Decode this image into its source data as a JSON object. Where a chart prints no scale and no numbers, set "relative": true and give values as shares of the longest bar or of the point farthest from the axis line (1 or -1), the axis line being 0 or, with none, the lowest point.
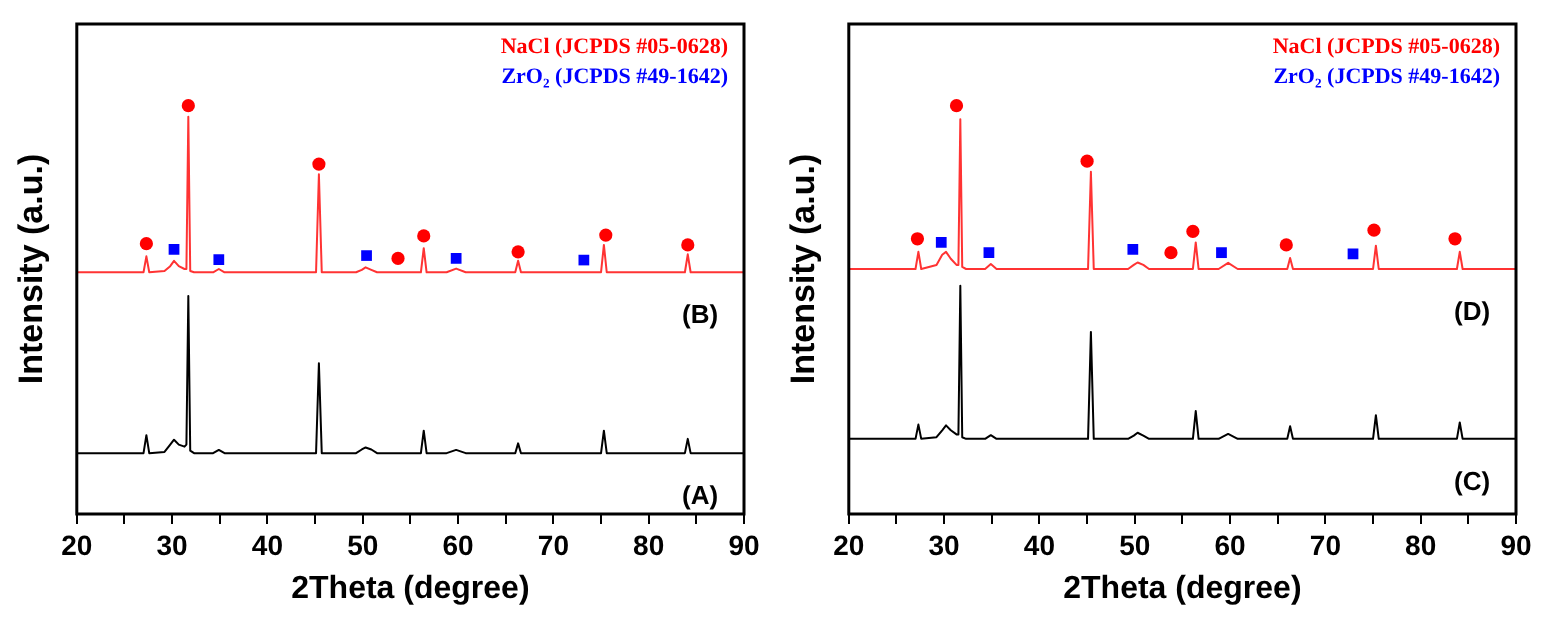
{
  "chart_data": [
    {
      "type": "line",
      "relative": true,
      "xlabel": "2Theta (degree)",
      "ylabel": "Intensity (a.u.)",
      "xlim": [
        20,
        90
      ],
      "xticks": [
        20,
        {
          "value": 25,
          "label": null
        },
        30,
        {
          "value": 35,
          "label": null
        },
        40,
        {
          "value": 45,
          "label": null
        },
        50,
        {
          "value": 55,
          "label": null
        },
        60,
        {
          "value": 65,
          "label": null
        },
        70,
        {
          "value": 75,
          "label": null
        },
        80,
        {
          "value": 85,
          "label": null
        },
        90
      ],
      "grid": false,
      "legend": "top right",
      "marker": "none",
      "x": [
        20,
        27.0,
        27.3,
        27.6,
        29.2,
        29.8,
        30.2,
        30.7,
        31.3,
        31.5,
        31.7,
        31.9,
        32.3,
        34.3,
        34.9,
        35.5,
        45.1,
        45.4,
        45.7,
        49.3,
        49.9,
        50.3,
        50.9,
        51.5,
        56.1,
        56.4,
        56.7,
        58.8,
        59.8,
        60.8,
        66.0,
        66.3,
        66.6,
        75.0,
        75.3,
        75.6,
        83.8,
        84.1,
        84.4,
        90
      ],
      "series": [
        {
          "color": "#000000",
          "values": [
            0.149,
            0.149,
            0.193,
            0.149,
            0.152,
            0.17,
            0.182,
            0.17,
            0.165,
            0.17,
            0.534,
            0.155,
            0.149,
            0.149,
            0.157,
            0.149,
            0.149,
            0.369,
            0.149,
            0.149,
            0.158,
            0.163,
            0.158,
            0.149,
            0.149,
            0.204,
            0.149,
            0.149,
            0.157,
            0.149,
            0.149,
            0.173,
            0.149,
            0.149,
            0.204,
            0.149,
            0.149,
            0.184,
            0.149,
            0.149
          ]
        },
        {
          "color": "#ff3333",
          "values": [
            0.592,
            0.592,
            0.631,
            0.592,
            0.595,
            0.607,
            0.62,
            0.607,
            0.6,
            0.6,
            0.973,
            0.595,
            0.592,
            0.592,
            0.6,
            0.592,
            0.592,
            0.832,
            0.592,
            0.592,
            0.598,
            0.604,
            0.598,
            0.592,
            0.592,
            0.651,
            0.592,
            0.592,
            0.601,
            0.592,
            0.592,
            0.62,
            0.592,
            0.592,
            0.659,
            0.592,
            0.592,
            0.636,
            0.592,
            0.592
          ]
        },
        {
          "type": "scatter",
          "name": "NaCl (JCPDS #05-0628)",
          "color": "#ff0000",
          "marker": "circle",
          "x": [
            27.3,
            31.7,
            45.4,
            53.7,
            56.4,
            66.3,
            75.5,
            84.1
          ],
          "values": [
            0.662,
            1,
            0.857,
            0.626,
            0.681,
            0.642,
            0.683,
            0.659
          ]
        },
        {
          "type": "scatter",
          "name": "ZrO₂ (JCPDS #49-1642)",
          "color": "#0000ff",
          "marker": "square",
          "x": [
            30.2,
            34.9,
            50.4,
            59.8,
            73.2
          ],
          "values": [
            0.648,
            0.623,
            0.633,
            0.626,
            0.622
          ]
        }
      ],
      "annotations": [
        "(B)",
        "(A)"
      ]
    },
    {
      "type": "line",
      "relative": true,
      "xlabel": "2Theta (degree)",
      "ylabel": "Intensity (a.u.)",
      "xlim": [
        20,
        90
      ],
      "xticks": [
        20,
        {
          "value": 25,
          "label": null
        },
        30,
        {
          "value": 35,
          "label": null
        },
        40,
        {
          "value": 45,
          "label": null
        },
        50,
        {
          "value": 55,
          "label": null
        },
        60,
        {
          "value": 65,
          "label": null
        },
        70,
        {
          "value": 75,
          "label": null
        },
        80,
        {
          "value": 85,
          "label": null
        },
        90
      ],
      "grid": false,
      "legend": "top right",
      "marker": "none",
      "x": [
        20,
        27.0,
        27.3,
        27.6,
        29.2,
        29.8,
        30.2,
        30.7,
        31.3,
        31.5,
        31.7,
        31.9,
        32.3,
        34.3,
        34.9,
        35.5,
        45.1,
        45.4,
        45.7,
        49.3,
        49.9,
        50.3,
        50.9,
        51.5,
        56.1,
        56.4,
        56.7,
        58.8,
        59.8,
        60.8,
        66.0,
        66.3,
        66.6,
        75.0,
        75.3,
        75.6,
        83.8,
        84.1,
        84.4,
        90
      ],
      "series": [
        {
          "color": "#000000",
          "values": [
            0.184,
            0.184,
            0.219,
            0.184,
            0.188,
            0.205,
            0.217,
            0.205,
            0.195,
            0.195,
            0.559,
            0.188,
            0.184,
            0.184,
            0.193,
            0.184,
            0.184,
            0.446,
            0.184,
            0.184,
            0.192,
            0.199,
            0.192,
            0.184,
            0.184,
            0.252,
            0.184,
            0.184,
            0.196,
            0.184,
            0.184,
            0.215,
            0.184,
            0.184,
            0.242,
            0.184,
            0.184,
            0.224,
            0.184,
            0.184
          ]
        },
        {
          "color": "#ff3333",
          "values": [
            0.6,
            0.6,
            0.642,
            0.6,
            0.61,
            0.635,
            0.642,
            0.625,
            0.61,
            0.61,
            0.967,
            0.605,
            0.6,
            0.6,
            0.612,
            0.6,
            0.6,
            0.838,
            0.6,
            0.6,
            0.61,
            0.616,
            0.61,
            0.6,
            0.6,
            0.665,
            0.6,
            0.6,
            0.615,
            0.6,
            0.6,
            0.627,
            0.6,
            0.6,
            0.657,
            0.6,
            0.6,
            0.642,
            0.6,
            0.6
          ]
        },
        {
          "type": "scatter",
          "name": "NaCl (JCPDS #05-0628)",
          "color": "#ff0000",
          "marker": "circle",
          "x": [
            27.2,
            31.3,
            45.0,
            53.8,
            56.1,
            65.9,
            75.1,
            83.6
          ],
          "values": [
            0.674,
            1,
            0.864,
            0.64,
            0.692,
            0.659,
            0.695,
            0.674
          ]
        },
        {
          "type": "scatter",
          "name": "ZrO₂ (JCPDS #49-1642)",
          "color": "#0000ff",
          "marker": "square",
          "x": [
            29.7,
            34.7,
            49.8,
            59.1,
            72.9
          ],
          "values": [
            0.665,
            0.64,
            0.648,
            0.64,
            0.637
          ]
        }
      ],
      "annotations": [
        "(D)",
        "(C)"
      ]
    }
  ]
}
